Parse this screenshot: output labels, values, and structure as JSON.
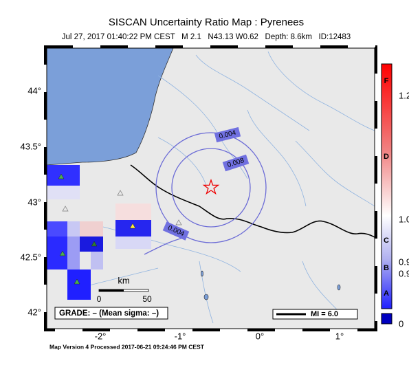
{
  "header": {
    "title": "SISCAN Uncertainty Ratio Map : Pyrenees",
    "subtitle": "Jul 27, 2017 01:40:22 PM CEST   M 2.1   N43.13 W0.62   Depth: 8.6km   ID:12483"
  },
  "map": {
    "lat_labels": [
      "44°",
      "43.5°",
      "43°",
      "42.5°",
      "42°"
    ],
    "lon_labels": [
      "-2°",
      "-1°",
      "0°",
      "1°"
    ],
    "contour_labels": [
      "0.004",
      "0.008",
      "0.004"
    ],
    "scale_bar": {
      "unit": "km",
      "labels": [
        "0",
        "50"
      ]
    },
    "grade": "GRADE: – (Mean sigma: –)",
    "mi": "MI = 6.0"
  },
  "colorbar": {
    "grades": [
      "F",
      "D",
      "C",
      "B",
      "A"
    ],
    "labels": [
      "1.2",
      "1.0",
      "0.9",
      "0.9",
      "0"
    ]
  },
  "footer": "Map Version 4 Processed 2017-06-21 09:24:46 PM CEST"
}
